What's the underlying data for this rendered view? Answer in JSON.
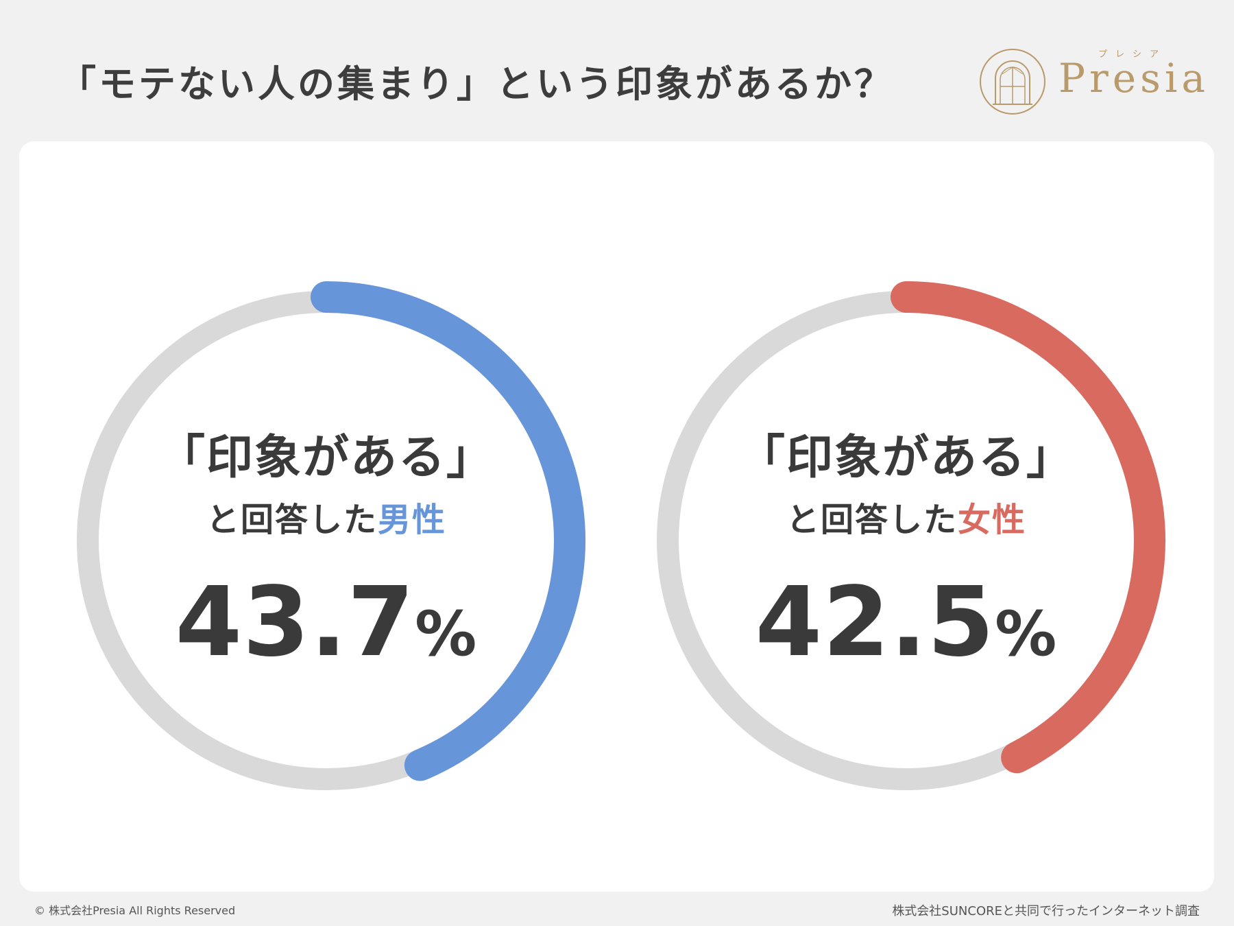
{
  "title": "「モテない人の集まり」という印象があるか？",
  "logo": {
    "word": "Presia",
    "kana": "プレシア"
  },
  "chart_data": {
    "type": "pie",
    "charts": [
      {
        "label_main": "「印象がある」",
        "label_sub_prefix": "と回答した",
        "label_sub_highlight": "男性",
        "value": 43.7,
        "value_text": "43.7",
        "unit": "%",
        "color": "#6795d9",
        "track_color": "#d9d9d9"
      },
      {
        "label_main": "「印象がある」",
        "label_sub_prefix": "と回答した",
        "label_sub_highlight": "女性",
        "value": 42.5,
        "value_text": "42.5",
        "unit": "%",
        "color": "#d96a60",
        "track_color": "#d9d9d9"
      }
    ]
  },
  "footer": {
    "copyright": "© 株式会社Presia All Rights Reserved",
    "source": "株式会社SUNCOREと共同で行ったインターネット調査"
  }
}
